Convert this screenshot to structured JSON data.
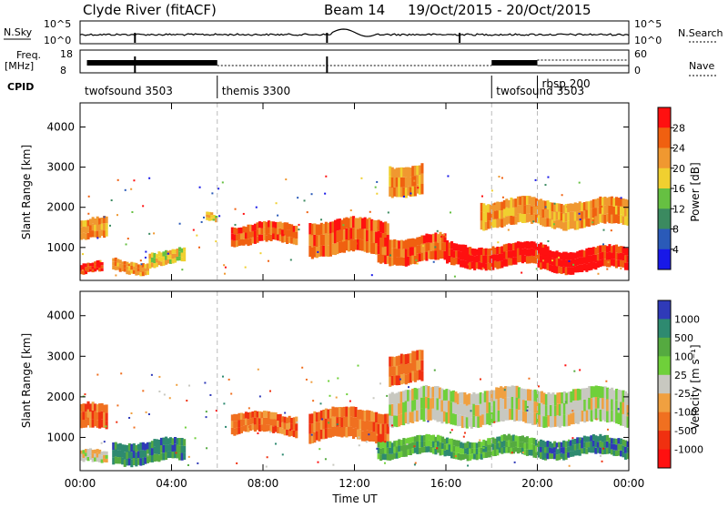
{
  "header": {
    "station": "Clyde River (fitACF)",
    "beam": "Beam 14",
    "date_range": "19/Oct/2015 - 20/Oct/2015"
  },
  "top_panels": {
    "nsky_label": "N.Sky",
    "nsky_ticks": [
      "10^5",
      "10^0"
    ],
    "nsearch_label": "N.Search",
    "nsearch_ticks": [
      "10^5",
      "10^0"
    ],
    "freq_label_1": "Freq.",
    "freq_label_2": "[MHz]",
    "freq_ticks": [
      "18",
      "8"
    ],
    "nave_label": "Nave",
    "nave_ticks": [
      "60",
      "0"
    ],
    "cpid_label": "CPID",
    "cpid_segments": [
      {
        "label": "twofsound 3503",
        "start": 0,
        "end": 6
      },
      {
        "label": "themis 3300",
        "start": 6,
        "end": 18
      },
      {
        "label": "twofsound 3503",
        "start": 18,
        "end": 20
      },
      {
        "label": "rbsp 200",
        "start": 20,
        "end": 24
      }
    ]
  },
  "chart_data": [
    {
      "type": "heatmap",
      "panel": "power",
      "xlabel": "",
      "ylabel": "Slant Range [km]",
      "xlim": [
        0,
        24
      ],
      "ylim": [
        180,
        4600
      ],
      "yticks": [
        1000,
        2000,
        3000,
        4000
      ],
      "colorbar": {
        "label": "Power [dB]",
        "ticks": [
          4,
          8,
          12,
          16,
          20,
          24,
          28
        ],
        "range": [
          0,
          32
        ],
        "colors": [
          "#1818e8",
          "#2a5ab8",
          "#3b8a60",
          "#66c042",
          "#f0d030",
          "#f09830",
          "#f06010",
          "#ff1010"
        ]
      },
      "echo_bands": [
        {
          "t0": 0.0,
          "t1": 1.2,
          "r0": 1150,
          "r1": 1700,
          "level": 5
        },
        {
          "t0": 0.0,
          "t1": 1.0,
          "r0": 300,
          "r1": 600,
          "level": 7
        },
        {
          "t0": 1.4,
          "t1": 3.0,
          "r0": 350,
          "r1": 700,
          "level": 5
        },
        {
          "t0": 3.0,
          "t1": 4.6,
          "r0": 550,
          "r1": 950,
          "level": 4
        },
        {
          "t0": 5.5,
          "t1": 6.0,
          "r0": 1650,
          "r1": 1900,
          "level": 4
        },
        {
          "t0": 6.6,
          "t1": 9.5,
          "r0": 1050,
          "r1": 1600,
          "level": 6
        },
        {
          "t0": 10.0,
          "t1": 13.5,
          "r0": 800,
          "r1": 1700,
          "level": 6
        },
        {
          "t0": 13.0,
          "t1": 16.0,
          "r0": 600,
          "r1": 1300,
          "level": 6
        },
        {
          "t0": 13.5,
          "t1": 15.0,
          "r0": 2300,
          "r1": 3100,
          "level": 5
        },
        {
          "t0": 16.0,
          "t1": 20.5,
          "r0": 500,
          "r1": 1100,
          "level": 7
        },
        {
          "t0": 20.0,
          "t1": 24.0,
          "r0": 400,
          "r1": 1000,
          "level": 7
        },
        {
          "t0": 17.5,
          "t1": 24.0,
          "r0": 1500,
          "r1": 2200,
          "level": 5
        }
      ]
    },
    {
      "type": "heatmap",
      "panel": "velocity",
      "xlabel": "Time UT",
      "ylabel": "Slant Range [km]",
      "xlim": [
        0,
        24
      ],
      "ylim": [
        180,
        4600
      ],
      "yticks": [
        1000,
        2000,
        3000,
        4000
      ],
      "xticks": [
        "00:00",
        "04:00",
        "08:00",
        "12:00",
        "16:00",
        "20:00",
        "00:00"
      ],
      "colorbar": {
        "label": "Velocity [m s⁻¹]",
        "ticks": [
          "1000",
          "500",
          "100",
          "25",
          "-25",
          "-100",
          "-500",
          "-1000"
        ],
        "colors": [
          "#2f3ab8",
          "#2e8a70",
          "#55aa40",
          "#6fd03a",
          "#c8c8c0",
          "#f0a040",
          "#f07020",
          "#f03010",
          "#ff1010"
        ]
      },
      "echo_bands": [
        {
          "t0": 0.0,
          "t1": 1.2,
          "r0": 1150,
          "r1": 1800,
          "level": 6
        },
        {
          "t0": 0.0,
          "t1": 1.2,
          "r0": 300,
          "r1": 650,
          "level": 4
        },
        {
          "t0": 1.4,
          "t1": 4.6,
          "r0": 350,
          "r1": 950,
          "level": 1
        },
        {
          "t0": 6.6,
          "t1": 9.5,
          "r0": 1050,
          "r1": 1600,
          "level": 6
        },
        {
          "t0": 10.0,
          "t1": 13.5,
          "r0": 900,
          "r1": 1700,
          "level": 6
        },
        {
          "t0": 13.0,
          "t1": 20.5,
          "r0": 500,
          "r1": 1000,
          "level": 2
        },
        {
          "t0": 13.5,
          "t1": 15.0,
          "r0": 2300,
          "r1": 3100,
          "level": 6
        },
        {
          "t0": 13.5,
          "t1": 24.0,
          "r0": 1300,
          "r1": 2200,
          "level": 4
        },
        {
          "t0": 20.0,
          "t1": 24.0,
          "r0": 500,
          "r1": 1000,
          "level": 1
        }
      ]
    }
  ]
}
